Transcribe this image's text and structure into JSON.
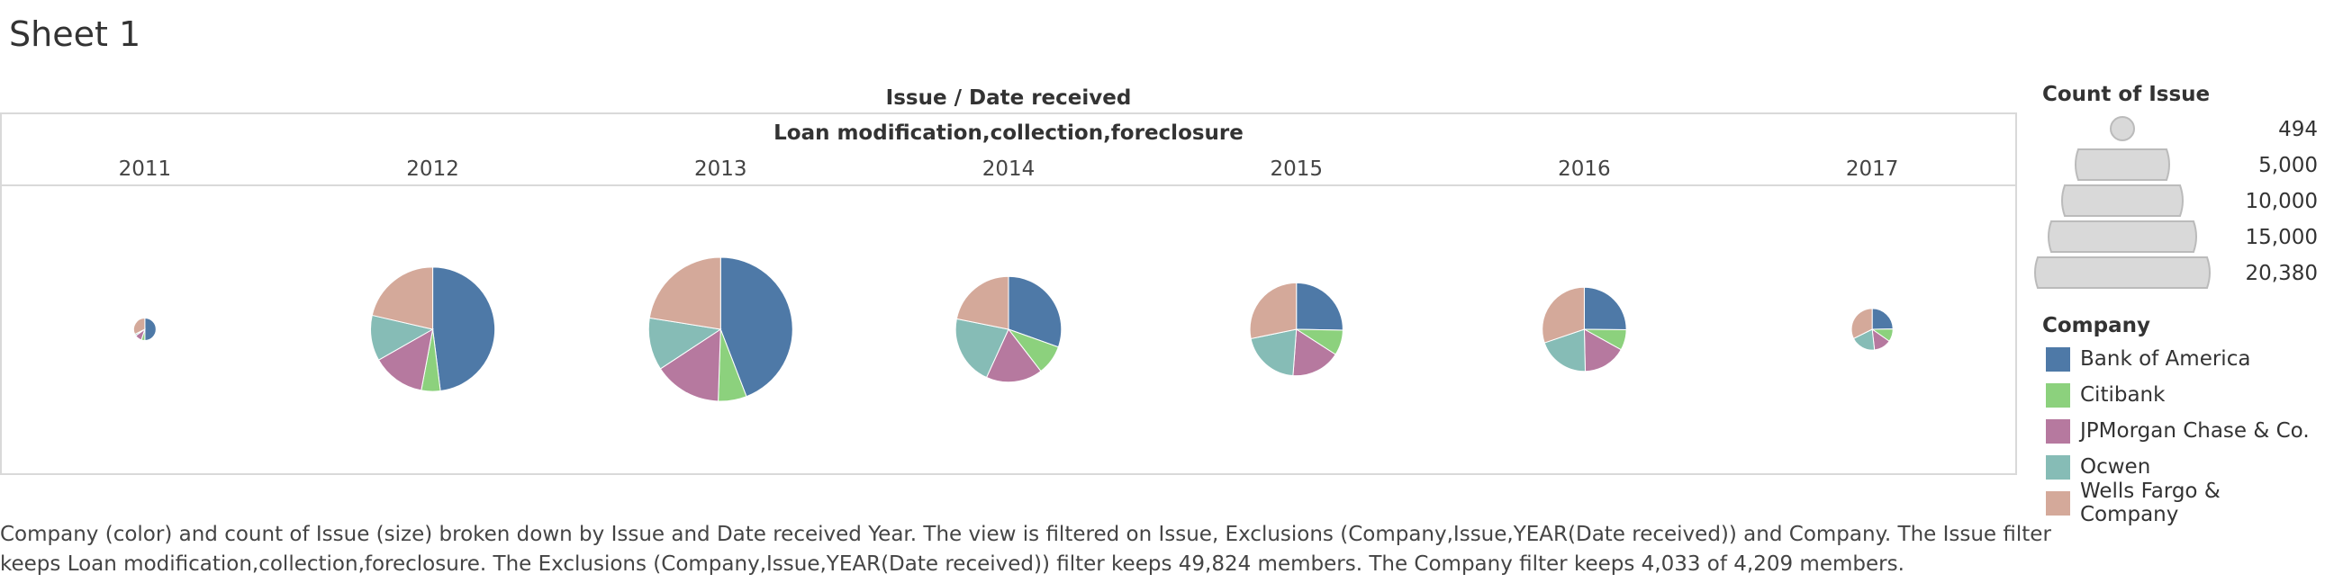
{
  "sheet_title": "Sheet 1",
  "colors": {
    "Bank of America": "#4e79a7",
    "Citibank": "#8cd17d",
    "JPMorgan Chase & Co.": "#b6799f",
    "Ocwen": "#86bcb6",
    "Wells Fargo & Company": "#d4a99a",
    "pane_border": "#d9d9d9",
    "legend_shape": "#d9d9d9"
  },
  "chart_data": {
    "type": "pie",
    "header_title": "Issue  /  Date received",
    "issue_label": "Loan modification,collection,foreclosure",
    "years": [
      "2011",
      "2012",
      "2013",
      "2014",
      "2015",
      "2016",
      "2017"
    ],
    "size_measure": "Count of Issue",
    "size_max": 20380,
    "pies": [
      {
        "year": "2011",
        "total": 494,
        "slices": [
          {
            "company": "Bank of America",
            "value": 247
          },
          {
            "company": "Citibank",
            "value": 25
          },
          {
            "company": "JPMorgan Chase & Co.",
            "value": 50
          },
          {
            "company": "Ocwen",
            "value": 12
          },
          {
            "company": "Wells Fargo & Company",
            "value": 160
          }
        ]
      },
      {
        "year": "2012",
        "total": 15200,
        "slices": [
          {
            "company": "Bank of America",
            "value": 7300
          },
          {
            "company": "Citibank",
            "value": 750
          },
          {
            "company": "JPMorgan Chase & Co.",
            "value": 2100
          },
          {
            "company": "Ocwen",
            "value": 1800
          },
          {
            "company": "Wells Fargo & Company",
            "value": 3250
          }
        ]
      },
      {
        "year": "2013",
        "total": 20380,
        "slices": [
          {
            "company": "Bank of America",
            "value": 9000
          },
          {
            "company": "Citibank",
            "value": 1300
          },
          {
            "company": "JPMorgan Chase & Co.",
            "value": 3100
          },
          {
            "company": "Ocwen",
            "value": 2400
          },
          {
            "company": "Wells Fargo & Company",
            "value": 4580
          }
        ]
      },
      {
        "year": "2014",
        "total": 11000,
        "slices": [
          {
            "company": "Bank of America",
            "value": 3350
          },
          {
            "company": "Citibank",
            "value": 1000
          },
          {
            "company": "JPMorgan Chase & Co.",
            "value": 1900
          },
          {
            "company": "Ocwen",
            "value": 2350
          },
          {
            "company": "Wells Fargo & Company",
            "value": 2400
          }
        ]
      },
      {
        "year": "2015",
        "total": 8500,
        "slices": [
          {
            "company": "Bank of America",
            "value": 2150
          },
          {
            "company": "Citibank",
            "value": 750
          },
          {
            "company": "JPMorgan Chase & Co.",
            "value": 1450
          },
          {
            "company": "Ocwen",
            "value": 1750
          },
          {
            "company": "Wells Fargo & Company",
            "value": 2400
          }
        ]
      },
      {
        "year": "2016",
        "total": 6950,
        "slices": [
          {
            "company": "Bank of America",
            "value": 1750
          },
          {
            "company": "Citibank",
            "value": 550
          },
          {
            "company": "JPMorgan Chase & Co.",
            "value": 1150
          },
          {
            "company": "Ocwen",
            "value": 1400
          },
          {
            "company": "Wells Fargo & Company",
            "value": 2100
          }
        ]
      },
      {
        "year": "2017",
        "total": 1700,
        "slices": [
          {
            "company": "Bank of America",
            "value": 420
          },
          {
            "company": "Citibank",
            "value": 170
          },
          {
            "company": "JPMorgan Chase & Co.",
            "value": 230
          },
          {
            "company": "Ocwen",
            "value": 330
          },
          {
            "company": "Wells Fargo & Company",
            "value": 550
          }
        ]
      }
    ]
  },
  "size_legend": {
    "title": "Count of Issue",
    "items": [
      "494",
      "5,000",
      "10,000",
      "15,000",
      "20,380"
    ],
    "values": [
      494,
      5000,
      10000,
      15000,
      20380
    ]
  },
  "color_legend": {
    "title": "Company",
    "items": [
      "Bank of America",
      "Citibank",
      "JPMorgan Chase & Co.",
      "Ocwen",
      "Wells Fargo & Company"
    ]
  },
  "caption": {
    "line1": "Company (color) and count of Issue (size) broken down by Issue and Date received Year. The view is filtered on Issue, Exclusions (Company,Issue,YEAR(Date received)) and Company. The Issue filter",
    "line2": "keeps Loan modification,collection,foreclosure. The Exclusions (Company,Issue,YEAR(Date received)) filter keeps 49,824 members. The Company filter keeps 4,033 of 4,209 members."
  }
}
